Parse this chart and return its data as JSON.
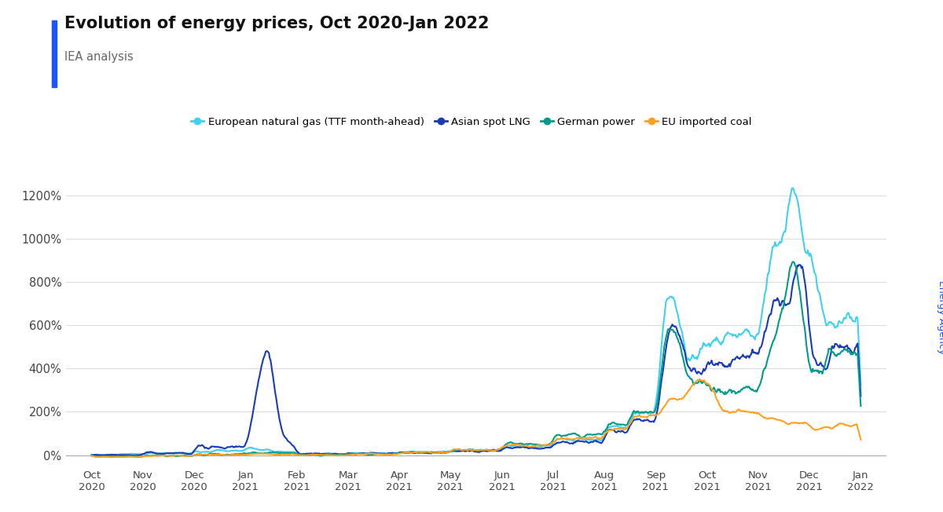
{
  "title": "Evolution of energy prices, Oct 2020-Jan 2022",
  "subtitle": "IEA analysis",
  "right_label": "International\nEnergy Agency",
  "series_labels": [
    "European natural gas (TTF month-ahead)",
    "Asian spot LNG",
    "German power",
    "EU imported coal"
  ],
  "series_colors": [
    "#40D0F0",
    "#1A3BB5",
    "#009B8A",
    "#FFA020"
  ],
  "x_tick_labels": [
    "Oct\n2020",
    "Nov\n2020",
    "Dec\n2020",
    "Jan\n2021",
    "Feb\n2021",
    "Mar\n2021",
    "Apr\n2021",
    "May\n2021",
    "Jun\n2021",
    "Jul\n2021",
    "Aug\n2021",
    "Sep\n2021",
    "Oct\n2021",
    "Nov\n2021",
    "Dec\n2021",
    "Jan\n2022"
  ],
  "ylim": [
    -50,
    1300
  ],
  "yticks": [
    0,
    200,
    400,
    600,
    800,
    1000,
    1200
  ],
  "background_color": "#FFFFFF",
  "title_bar_color": "#1A56FF"
}
